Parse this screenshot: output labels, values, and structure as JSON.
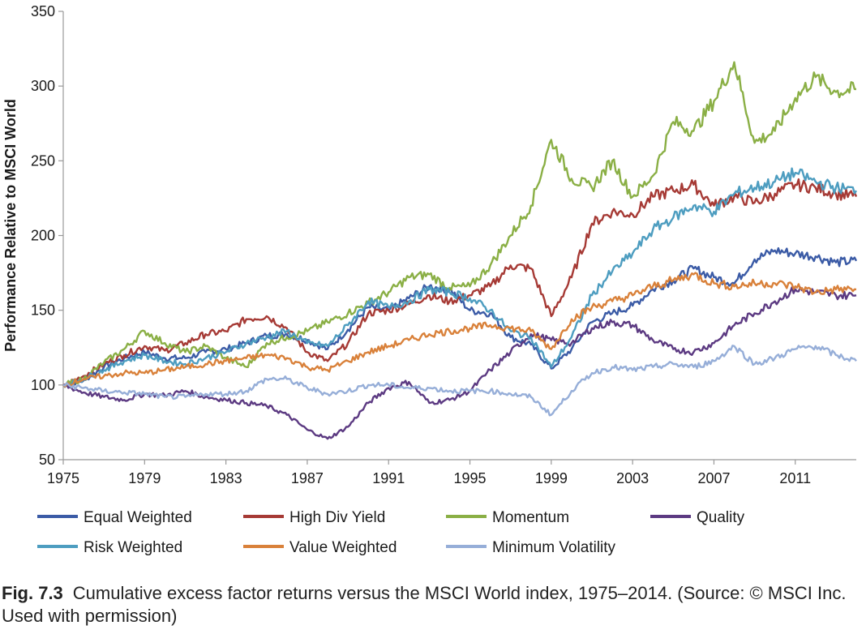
{
  "chart_data": {
    "type": "line",
    "title": "",
    "xlabel": "",
    "ylabel": "Performance Relative to MSCI World",
    "xlim": [
      1975,
      2014
    ],
    "ylim": [
      50,
      350
    ],
    "x_ticks": [
      "1975",
      "1979",
      "1983",
      "1987",
      "1991",
      "1995",
      "1999",
      "2003",
      "2007",
      "2011"
    ],
    "y_ticks": [
      "50",
      "100",
      "150",
      "200",
      "250",
      "300",
      "350"
    ],
    "grid": false,
    "legend_position": "bottom",
    "series": [
      {
        "name": "Equal Weighted",
        "color": "#3B5BA6",
        "x": [
          1975,
          1976,
          1977,
          1978,
          1979,
          1980,
          1981,
          1982,
          1983,
          1984,
          1985,
          1986,
          1987,
          1988,
          1989,
          1990,
          1991,
          1992,
          1993,
          1994,
          1995,
          1996,
          1997,
          1998,
          1999,
          2000,
          2001,
          2002,
          2003,
          2004,
          2005,
          2006,
          2007,
          2008,
          2009,
          2010,
          2011,
          2012,
          2013,
          2014
        ],
        "y": [
          100,
          103,
          112,
          118,
          122,
          118,
          118,
          122,
          124,
          128,
          133,
          134,
          130,
          124,
          137,
          152,
          150,
          158,
          166,
          164,
          150,
          148,
          132,
          127,
          111,
          124,
          142,
          148,
          153,
          164,
          170,
          178,
          172,
          168,
          184,
          190,
          188,
          186,
          182,
          183
        ]
      },
      {
        "name": "High Div Yield",
        "color": "#A63A35",
        "x": [
          1975,
          1976,
          1977,
          1978,
          1979,
          1980,
          1981,
          1982,
          1983,
          1984,
          1985,
          1986,
          1987,
          1988,
          1989,
          1990,
          1991,
          1992,
          1993,
          1994,
          1995,
          1996,
          1997,
          1998,
          1999,
          2000,
          2001,
          2002,
          2003,
          2004,
          2005,
          2006,
          2007,
          2008,
          2009,
          2010,
          2011,
          2012,
          2013,
          2014
        ],
        "y": [
          100,
          106,
          114,
          120,
          126,
          123,
          128,
          134,
          136,
          144,
          146,
          138,
          122,
          116,
          128,
          148,
          150,
          154,
          160,
          156,
          160,
          166,
          180,
          178,
          146,
          172,
          208,
          216,
          214,
          226,
          230,
          234,
          220,
          226,
          222,
          228,
          234,
          232,
          228,
          226
        ]
      },
      {
        "name": "Momentum",
        "color": "#8AAF45",
        "x": [
          1975,
          1976,
          1977,
          1978,
          1979,
          1980,
          1981,
          1982,
          1983,
          1984,
          1985,
          1986,
          1987,
          1988,
          1989,
          1990,
          1991,
          1992,
          1993,
          1994,
          1995,
          1996,
          1997,
          1998,
          1999,
          2000,
          2001,
          2002,
          2003,
          2004,
          2005,
          2006,
          2007,
          2008,
          2009,
          2010,
          2011,
          2012,
          2013,
          2014
        ],
        "y": [
          100,
          104,
          115,
          124,
          136,
          128,
          122,
          126,
          118,
          112,
          128,
          132,
          136,
          142,
          148,
          155,
          162,
          172,
          174,
          165,
          166,
          180,
          200,
          220,
          264,
          238,
          232,
          250,
          226,
          240,
          276,
          270,
          290,
          316,
          262,
          270,
          292,
          306,
          296,
          298
        ]
      },
      {
        "name": "Quality",
        "color": "#5C3A82",
        "x": [
          1975,
          1976,
          1977,
          1978,
          1979,
          1980,
          1981,
          1982,
          1983,
          1984,
          1985,
          1986,
          1987,
          1988,
          1989,
          1990,
          1991,
          1992,
          1993,
          1994,
          1995,
          1996,
          1997,
          1998,
          1999,
          2000,
          2001,
          2002,
          2003,
          2004,
          2005,
          2006,
          2007,
          2008,
          2009,
          2010,
          2011,
          2012,
          2013,
          2014
        ],
        "y": [
          100,
          95,
          92,
          90,
          94,
          93,
          96,
          92,
          90,
          88,
          86,
          80,
          70,
          64,
          72,
          88,
          98,
          102,
          88,
          90,
          96,
          110,
          122,
          134,
          130,
          128,
          138,
          142,
          140,
          130,
          124,
          122,
          128,
          140,
          148,
          156,
          164,
          162,
          160,
          160
        ]
      },
      {
        "name": "Risk Weighted",
        "color": "#4D9DC0",
        "x": [
          1975,
          1976,
          1977,
          1978,
          1979,
          1980,
          1981,
          1982,
          1983,
          1984,
          1985,
          1986,
          1987,
          1988,
          1989,
          1990,
          1991,
          1992,
          1993,
          1994,
          1995,
          1996,
          1997,
          1998,
          1999,
          2000,
          2001,
          2002,
          2003,
          2004,
          2005,
          2006,
          2007,
          2008,
          2009,
          2010,
          2011,
          2012,
          2013,
          2014
        ],
        "y": [
          100,
          104,
          110,
          116,
          120,
          116,
          114,
          118,
          122,
          128,
          132,
          136,
          128,
          126,
          140,
          156,
          152,
          156,
          164,
          162,
          158,
          150,
          136,
          132,
          112,
          132,
          160,
          176,
          188,
          204,
          212,
          220,
          216,
          228,
          232,
          236,
          242,
          236,
          232,
          230
        ]
      },
      {
        "name": "Value Weighted",
        "color": "#D9813A",
        "x": [
          1975,
          1976,
          1977,
          1978,
          1979,
          1980,
          1981,
          1982,
          1983,
          1984,
          1985,
          1986,
          1987,
          1988,
          1989,
          1990,
          1991,
          1992,
          1993,
          1994,
          1995,
          1996,
          1997,
          1998,
          1999,
          2000,
          2001,
          2002,
          2003,
          2004,
          2005,
          2006,
          2007,
          2008,
          2009,
          2010,
          2011,
          2012,
          2013,
          2014
        ],
        "y": [
          100,
          104,
          106,
          108,
          108,
          110,
          112,
          114,
          116,
          118,
          120,
          118,
          112,
          110,
          116,
          122,
          126,
          130,
          134,
          136,
          138,
          140,
          138,
          136,
          124,
          144,
          152,
          156,
          160,
          166,
          170,
          174,
          168,
          166,
          168,
          168,
          166,
          162,
          164,
          164
        ]
      },
      {
        "name": "Minimum Volatility",
        "color": "#96AED8",
        "x": [
          1975,
          1976,
          1977,
          1978,
          1979,
          1980,
          1981,
          1982,
          1983,
          1984,
          1985,
          1986,
          1987,
          1988,
          1989,
          1990,
          1991,
          1992,
          1993,
          1994,
          1995,
          1996,
          1997,
          1998,
          1999,
          2000,
          2001,
          2002,
          2003,
          2004,
          2005,
          2006,
          2007,
          2008,
          2009,
          2010,
          2011,
          2012,
          2013,
          2014
        ],
        "y": [
          100,
          98,
          96,
          95,
          94,
          92,
          92,
          94,
          94,
          96,
          104,
          104,
          98,
          94,
          96,
          100,
          100,
          98,
          98,
          96,
          96,
          96,
          94,
          92,
          80,
          96,
          108,
          112,
          110,
          112,
          114,
          112,
          116,
          126,
          114,
          118,
          124,
          126,
          120,
          116
        ]
      }
    ]
  },
  "caption": {
    "fig_num": "Fig. 7.3",
    "text": "Cumulative excess factor returns versus the MSCI World index, 1975–2014. (Source: © MSCI Inc. Used with permission)"
  }
}
